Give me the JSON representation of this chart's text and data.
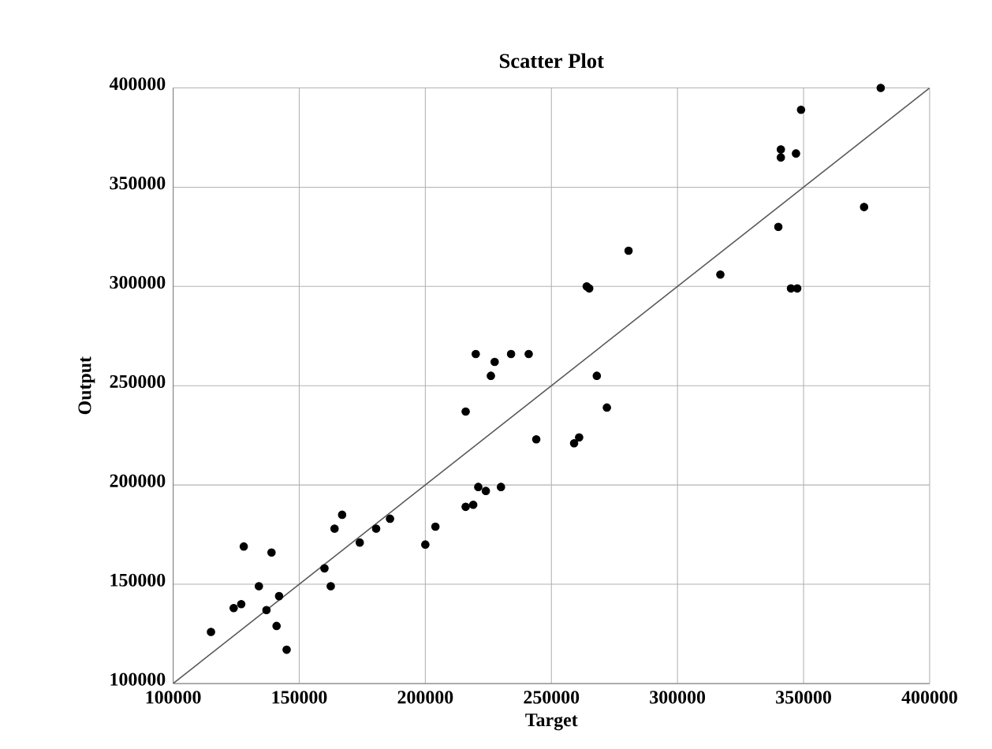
{
  "chart_data": {
    "type": "scatter",
    "title": "Scatter Plot",
    "xlabel": "Target",
    "ylabel": "Output",
    "xlim": [
      100000,
      400000
    ],
    "ylim": [
      100000,
      400000
    ],
    "xticks": [
      100000,
      150000,
      200000,
      250000,
      300000,
      350000,
      400000
    ],
    "yticks": [
      100000,
      150000,
      200000,
      250000,
      300000,
      350000,
      400000
    ],
    "grid": true,
    "marker": "circle",
    "series": [
      {
        "color": "#000000",
        "x": [
          115000,
          124000,
          127000,
          128000,
          134000,
          137000,
          139000,
          141000,
          142000,
          145000,
          160000,
          162500,
          164000,
          167000,
          174000,
          180500,
          186000,
          200000,
          204000,
          216000,
          219000,
          221000,
          224000,
          230000,
          216000,
          220000,
          226000,
          227500,
          234000,
          241000,
          244000,
          259000,
          261000,
          268000,
          272000,
          264000,
          265000,
          280600,
          317000,
          340000,
          341000,
          341000,
          347000,
          349000,
          345000,
          347500,
          374000,
          380600
        ],
        "values": [
          126000,
          138000,
          140000,
          169000,
          149000,
          137000,
          166000,
          129000,
          144000,
          117000,
          158000,
          149000,
          178000,
          185000,
          171000,
          178000,
          183000,
          170000,
          179000,
          189000,
          190000,
          199000,
          197000,
          199000,
          237000,
          266000,
          255000,
          262000,
          266000,
          266000,
          223000,
          221000,
          224000,
          255000,
          239000,
          300000,
          299000,
          318000,
          306000,
          330000,
          369000,
          365000,
          367000,
          389000,
          299000,
          299000,
          340000,
          400000
        ]
      },
      {
        "type": "line",
        "color": "#595959",
        "marker": "none",
        "x": [
          100000,
          400000
        ],
        "values": [
          100000,
          400000
        ]
      }
    ]
  }
}
